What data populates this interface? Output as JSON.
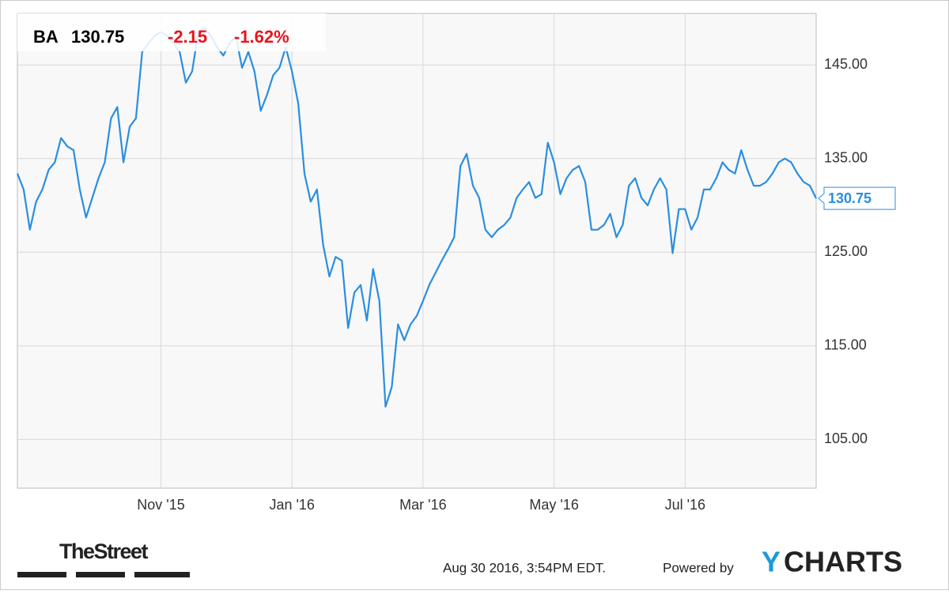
{
  "header": {
    "ticker": "BA",
    "change": "-2.15",
    "change_percent": "-1.62%"
  },
  "footer": {
    "brand": "TheStreet",
    "timestamp": "Aug 30 2016, 3:54PM EDT.",
    "powered_by": "Powered by",
    "logo_y": "Y",
    "logo_rest": "CHARTS"
  },
  "chart_data": {
    "type": "line",
    "categories": [
      null,
      null,
      null,
      null,
      null,
      null,
      null,
      null,
      null,
      null,
      null,
      null,
      null,
      null,
      null,
      null,
      null,
      null,
      null,
      null,
      null,
      null,
      null,
      "Nov '15",
      null,
      null,
      null,
      null,
      null,
      null,
      null,
      null,
      null,
      null,
      null,
      null,
      null,
      null,
      null,
      null,
      null,
      null,
      null,
      null,
      "Jan '16",
      null,
      null,
      null,
      null,
      null,
      null,
      null,
      null,
      null,
      null,
      null,
      null,
      null,
      null,
      null,
      null,
      null,
      null,
      null,
      null,
      "Mar '16",
      null,
      null,
      null,
      null,
      null,
      null,
      null,
      null,
      null,
      null,
      null,
      null,
      null,
      null,
      null,
      null,
      null,
      null,
      null,
      null,
      "May '16",
      null,
      null,
      null,
      null,
      null,
      null,
      null,
      null,
      null,
      null,
      null,
      null,
      null,
      null,
      null,
      null,
      null,
      null,
      null,
      null,
      "Jul '16",
      null,
      null,
      null,
      null,
      null,
      null,
      null,
      null,
      null,
      null,
      null,
      null,
      null,
      null,
      null,
      null,
      null,
      null,
      null,
      null,
      null
    ],
    "series": [
      {
        "name": "BA",
        "color": "#2a8ee0",
        "values": [
          133.4,
          131.7,
          127.4,
          130.4,
          131.7,
          133.8,
          134.6,
          137.2,
          136.3,
          135.9,
          131.7,
          128.7,
          130.8,
          132.9,
          134.6,
          139.3,
          140.5,
          134.6,
          138.4,
          139.3,
          146.4,
          147.3,
          148.1,
          148.5,
          148.1,
          147.3,
          146.4,
          143.1,
          144.3,
          148.5,
          149.0,
          148.1,
          146.9,
          146.0,
          147.3,
          148.1,
          144.7,
          146.4,
          144.3,
          140.1,
          141.8,
          143.9,
          144.7,
          146.9,
          144.3,
          140.9,
          133.4,
          130.4,
          131.7,
          125.8,
          122.4,
          124.5,
          124.1,
          116.9,
          120.7,
          121.5,
          117.7,
          123.2,
          119.8,
          108.5,
          110.6,
          117.3,
          115.6,
          117.3,
          118.2,
          119.8,
          121.5,
          122.8,
          124.1,
          125.3,
          126.6,
          134.2,
          135.5,
          132.1,
          130.8,
          127.4,
          126.6,
          127.4,
          127.9,
          128.7,
          130.8,
          131.7,
          132.5,
          130.8,
          131.2,
          136.7,
          134.6,
          131.2,
          132.9,
          133.8,
          134.2,
          132.5,
          127.4,
          127.4,
          127.9,
          129.1,
          126.6,
          127.9,
          132.1,
          132.9,
          130.8,
          130.0,
          131.7,
          132.9,
          131.7,
          124.9,
          129.6,
          129.6,
          127.4,
          128.7,
          131.7,
          131.7,
          132.9,
          134.6,
          133.8,
          133.4,
          135.9,
          133.8,
          132.1,
          132.1,
          132.5,
          133.4,
          134.6,
          135.0,
          134.6,
          133.4,
          132.5,
          132.1,
          130.75
        ]
      }
    ],
    "ylim": [
      99.8,
      150.5
    ],
    "yticks": [
      {
        "value": 105,
        "label": "105.00"
      },
      {
        "value": 115,
        "label": "115.00"
      },
      {
        "value": 125,
        "label": "125.00"
      },
      {
        "value": 135,
        "label": "135.00"
      },
      {
        "value": 145,
        "label": "145.00"
      }
    ],
    "grid": true
  }
}
